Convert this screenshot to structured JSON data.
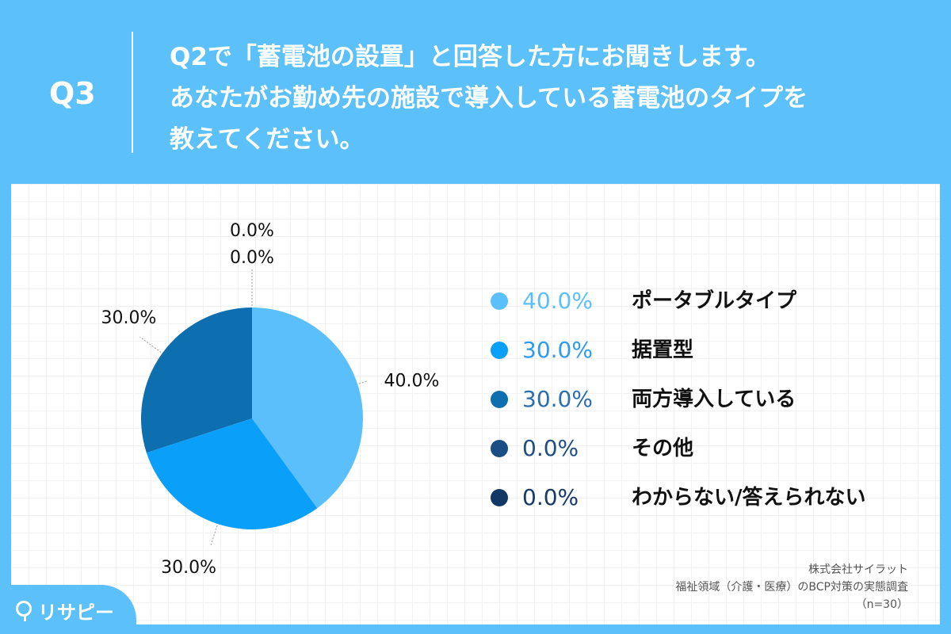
{
  "question": {
    "number": "Q3",
    "lines": [
      "Q2で「蓄電池の設置」と回答した方にお聞きします。",
      "あなたがお勤め先の施設で導入している蓄電池のタイプを",
      "教えてください。"
    ]
  },
  "chart_data": {
    "type": "pie",
    "categories": [
      "ポータブルタイプ",
      "据置型",
      "両方導入している",
      "その他",
      "わからない/答えられない"
    ],
    "values": [
      40.0,
      30.0,
      30.0,
      0.0,
      0.0
    ],
    "value_labels": [
      "40.0%",
      "30.0%",
      "30.0%",
      "0.0%",
      "0.0%"
    ],
    "colors": [
      "#5bbffc",
      "#0aa0fa",
      "#0e6fb0",
      "#1a4e85",
      "#123866"
    ],
    "legend_value_colors": [
      "#5bbffc",
      "#2e9cf0",
      "#2b6fb0",
      "#1e4e86",
      "#153a6b"
    ],
    "legend_position": "right",
    "grid": false
  },
  "source": {
    "company": "株式会社サイラット",
    "survey": "福祉領域（介護・医療）のBCP対策の実態調査",
    "n": "（n=30）"
  },
  "brand": {
    "name": "リサピー"
  }
}
